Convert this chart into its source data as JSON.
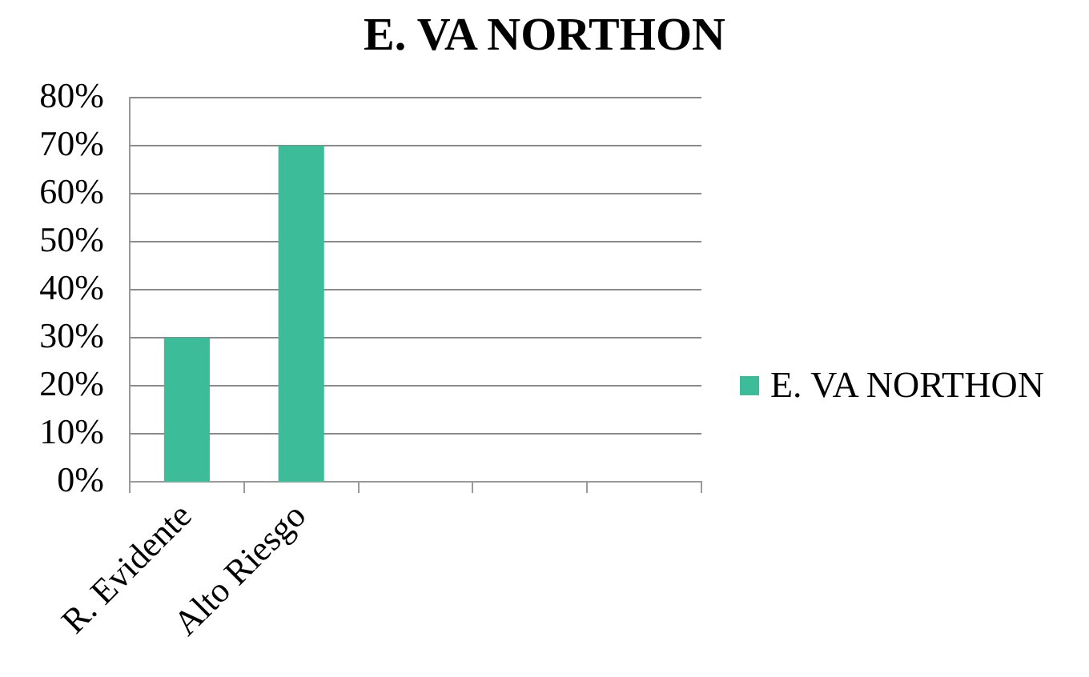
{
  "chart_data": {
    "type": "bar",
    "title": "E. VA NORTHON",
    "categories": [
      "R. Evidente",
      "Alto Riesgo",
      null,
      null,
      null
    ],
    "series": [
      {
        "name": "E. VA NORTHON",
        "color": "#3cbc98",
        "values": [
          30,
          70,
          null,
          null,
          null
        ]
      }
    ],
    "ylim": [
      0,
      80
    ],
    "yticks": [
      {
        "value": 0,
        "label": "0%"
      },
      {
        "value": 10,
        "label": "10%"
      },
      {
        "value": 20,
        "label": "20%"
      },
      {
        "value": 30,
        "label": "30%"
      },
      {
        "value": 40,
        "label": "40%"
      },
      {
        "value": 50,
        "label": "50%"
      },
      {
        "value": 60,
        "label": "60%"
      },
      {
        "value": 70,
        "label": "70%"
      },
      {
        "value": 80,
        "label": "80%"
      }
    ],
    "grid": "y",
    "legend": "right"
  }
}
